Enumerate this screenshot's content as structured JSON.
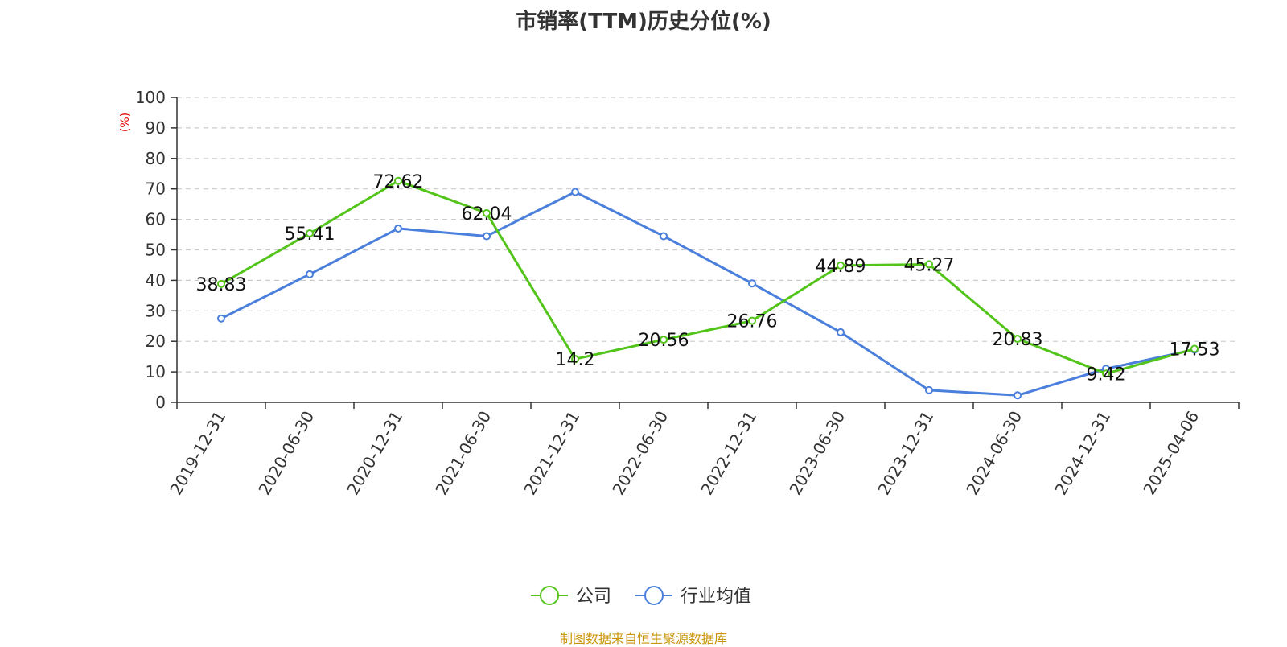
{
  "title": "市销率(TTM)历史分位(%)",
  "source": "制图数据来自恒生聚源数据库",
  "chart_data": {
    "type": "line",
    "title": "市销率(TTM)历史分位(%)",
    "ylabel": "(%)",
    "xlabel": "",
    "ylim": [
      0,
      100
    ],
    "yticks": [
      0,
      10,
      20,
      30,
      40,
      50,
      60,
      70,
      80,
      90,
      100
    ],
    "grid": true,
    "legend_position": "bottom",
    "categories": [
      "2019-12-31",
      "2020-06-30",
      "2020-12-31",
      "2021-06-30",
      "2021-12-31",
      "2022-06-30",
      "2022-12-31",
      "2023-06-30",
      "2023-12-31",
      "2024-06-30",
      "2024-12-31",
      "2025-04-06"
    ],
    "series": [
      {
        "name": "公司",
        "color": "#52c41a",
        "values": [
          38.83,
          55.41,
          72.62,
          62.04,
          14.2,
          20.56,
          26.76,
          44.89,
          45.27,
          20.83,
          9.42,
          17.53
        ],
        "labels": [
          "38.83",
          "55.41",
          "72.62",
          "62.04",
          "14.2",
          "20.56",
          "26.76",
          "44.89",
          "45.27",
          "20.83",
          "9.42",
          "17.53"
        ]
      },
      {
        "name": "行业均值",
        "color": "#4a7fdc",
        "values": [
          27.5,
          42.0,
          57.0,
          54.5,
          69.0,
          54.5,
          39.0,
          23.0,
          4.0,
          2.3,
          11.0,
          17.3
        ]
      }
    ]
  }
}
